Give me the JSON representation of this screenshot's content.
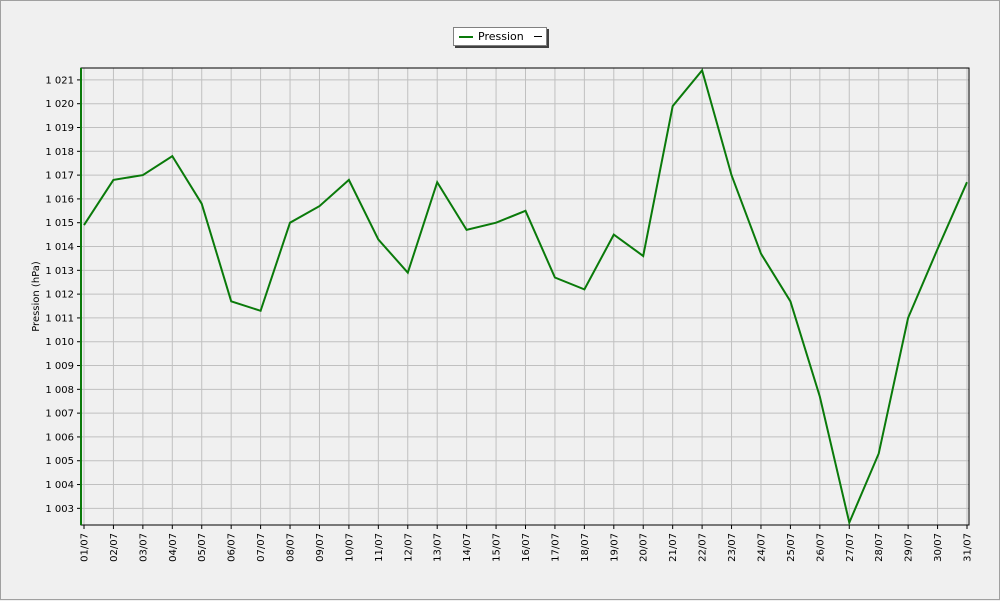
{
  "colors": {
    "series": "#0a7a0a",
    "grid": "#c0c0c0",
    "plot_bg": "#f0f0f0"
  },
  "chart_data": {
    "type": "line",
    "ylabel": "Pression (hPa)",
    "grid": true,
    "legend_position": "top-center",
    "ylim": [
      1002.3,
      1021.5
    ],
    "yticks": [
      {
        "value": 1003,
        "label": "1 003"
      },
      {
        "value": 1004,
        "label": "1 004"
      },
      {
        "value": 1005,
        "label": "1 005"
      },
      {
        "value": 1006,
        "label": "1 006"
      },
      {
        "value": 1007,
        "label": "1 007"
      },
      {
        "value": 1008,
        "label": "1 008"
      },
      {
        "value": 1009,
        "label": "1 009"
      },
      {
        "value": 1010,
        "label": "1 010"
      },
      {
        "value": 1011,
        "label": "1 011"
      },
      {
        "value": 1012,
        "label": "1 012"
      },
      {
        "value": 1013,
        "label": "1 013"
      },
      {
        "value": 1014,
        "label": "1 014"
      },
      {
        "value": 1015,
        "label": "1 015"
      },
      {
        "value": 1016,
        "label": "1 016"
      },
      {
        "value": 1017,
        "label": "1 017"
      },
      {
        "value": 1018,
        "label": "1 018"
      },
      {
        "value": 1019,
        "label": "1 019"
      },
      {
        "value": 1020,
        "label": "1 020"
      },
      {
        "value": 1021,
        "label": "1 021"
      }
    ],
    "categories": [
      "01/07",
      "02/07",
      "03/07",
      "04/07",
      "05/07",
      "06/07",
      "07/07",
      "08/07",
      "09/07",
      "10/07",
      "11/07",
      "12/07",
      "13/07",
      "14/07",
      "15/07",
      "16/07",
      "17/07",
      "18/07",
      "19/07",
      "20/07",
      "21/07",
      "22/07",
      "23/07",
      "24/07",
      "25/07",
      "26/07",
      "27/07",
      "28/07",
      "29/07",
      "30/07",
      "31/07"
    ],
    "series": [
      {
        "name": "Pression",
        "values": [
          1014.9,
          1016.8,
          1017.0,
          1017.8,
          1015.8,
          1011.7,
          1011.3,
          1015.0,
          1015.7,
          1016.8,
          1014.3,
          1012.9,
          1016.7,
          1014.7,
          1015.0,
          1015.5,
          1012.7,
          1012.2,
          1014.5,
          1013.6,
          1019.9,
          1021.4,
          1017.0,
          1013.7,
          1011.7,
          1007.7,
          1002.4,
          1005.3,
          1011.0,
          1013.9,
          1016.7
        ]
      }
    ]
  }
}
